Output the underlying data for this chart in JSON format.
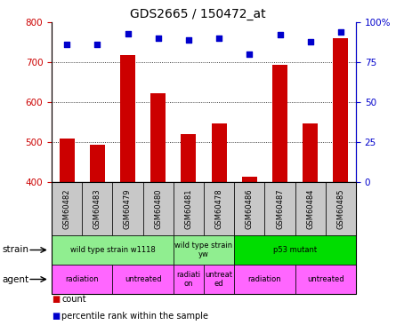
{
  "title": "GDS2665 / 150472_at",
  "samples": [
    "GSM60482",
    "GSM60483",
    "GSM60479",
    "GSM60480",
    "GSM60481",
    "GSM60478",
    "GSM60486",
    "GSM60487",
    "GSM60484",
    "GSM60485"
  ],
  "counts": [
    508,
    493,
    718,
    622,
    519,
    546,
    414,
    693,
    546,
    760
  ],
  "percentiles": [
    86,
    86,
    93,
    90,
    89,
    90,
    80,
    92,
    88,
    94
  ],
  "ymin": 400,
  "ymax": 800,
  "yticks_left": [
    400,
    500,
    600,
    700,
    800
  ],
  "yticks_right": [
    0,
    25,
    50,
    75,
    100
  ],
  "strain_groups": [
    {
      "label": "wild type strain w1118",
      "start": 0,
      "end": 4,
      "color": "#90EE90"
    },
    {
      "label": "wild type strain\nyw",
      "start": 4,
      "end": 6,
      "color": "#90EE90"
    },
    {
      "label": "p53 mutant",
      "start": 6,
      "end": 10,
      "color": "#00DD00"
    }
  ],
  "agent_groups": [
    {
      "label": "radiation",
      "start": 0,
      "end": 2
    },
    {
      "label": "untreated",
      "start": 2,
      "end": 4
    },
    {
      "label": "radiati\non",
      "start": 4,
      "end": 5
    },
    {
      "label": "untreat\ned",
      "start": 5,
      "end": 6
    },
    {
      "label": "radiation",
      "start": 6,
      "end": 8
    },
    {
      "label": "untreated",
      "start": 8,
      "end": 10
    }
  ],
  "bar_color": "#CC0000",
  "dot_color": "#0000CC",
  "sample_box_color": "#C8C8C8",
  "agent_color": "#FF66FF",
  "grid_color": "#000000",
  "left_tick_color": "#CC0000",
  "right_tick_color": "#0000CC"
}
